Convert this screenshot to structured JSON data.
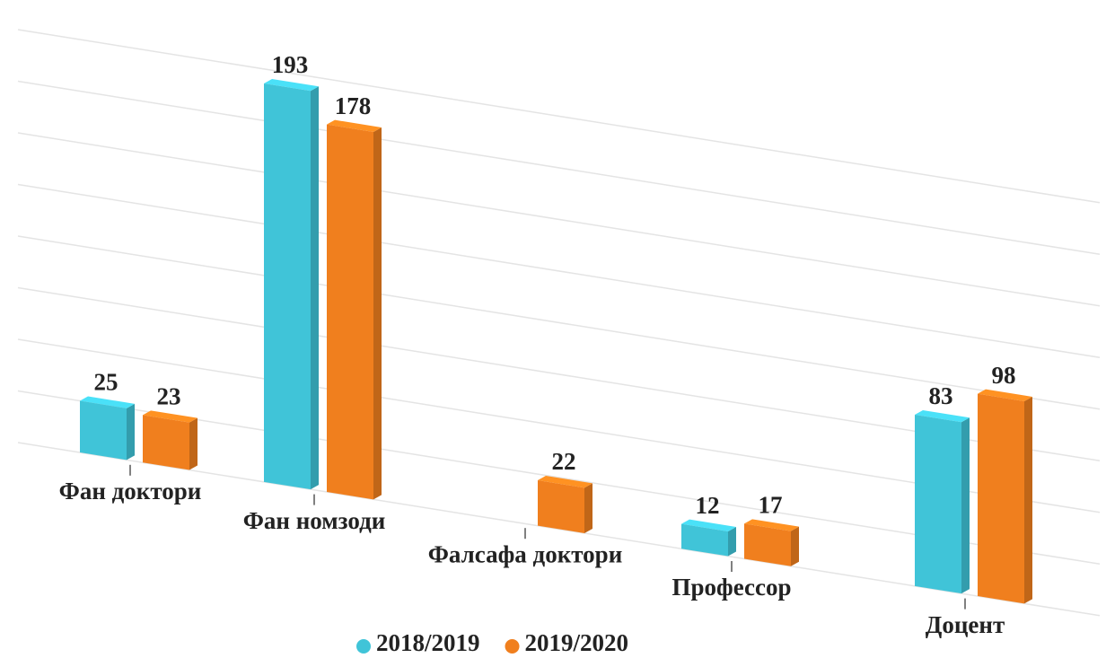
{
  "chart_data": {
    "type": "bar",
    "categories": [
      "Фан доктори",
      "Фан номзоди",
      "Фалсафа доктори",
      "Профессор",
      "Доцент"
    ],
    "series": [
      {
        "name": "2018/2019",
        "color": "#40c4d8",
        "values": [
          25,
          193,
          null,
          12,
          83
        ]
      },
      {
        "name": "2019/2020",
        "color": "#f07f1e",
        "values": [
          23,
          178,
          22,
          17,
          98
        ]
      }
    ],
    "ylim": [
      0,
      200
    ],
    "yticks": [
      0,
      25,
      50,
      75,
      100,
      125,
      150,
      175,
      200
    ],
    "grid": true,
    "legend": "bottom"
  }
}
